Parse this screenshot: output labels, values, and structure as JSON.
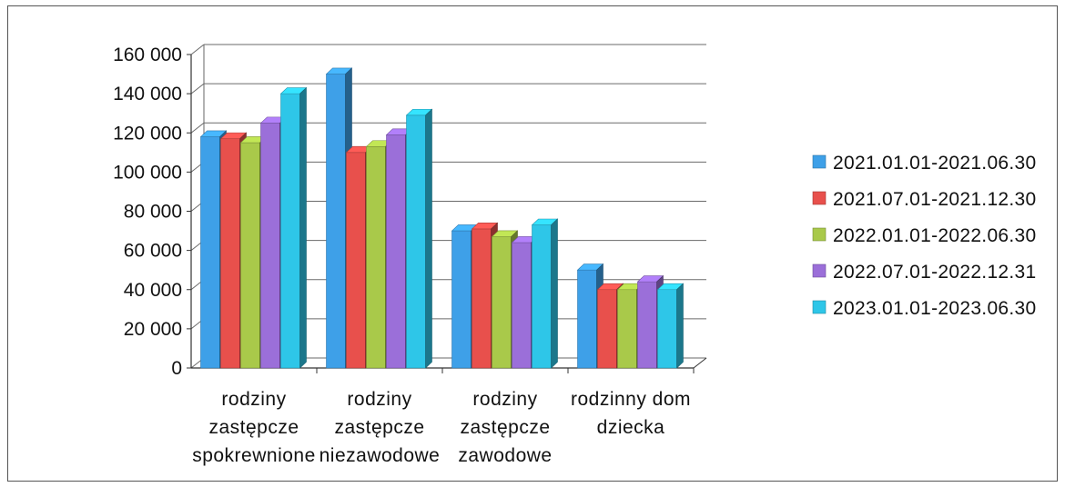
{
  "chart_data": {
    "type": "bar",
    "categories": [
      [
        "rodziny",
        "zastępcze",
        "spokrewnione"
      ],
      [
        "rodziny",
        "zastępcze",
        "niezawodowe"
      ],
      [
        "rodziny",
        "zastępcze",
        "zawodowe"
      ],
      [
        "rodzinny dom",
        "dziecka"
      ]
    ],
    "series": [
      {
        "name": "2021.01.01-2021.06.30",
        "values": [
          118000,
          150000,
          70000,
          50000
        ],
        "color": "#3ea0e8"
      },
      {
        "name": "2021.07.01-2021.12.30",
        "values": [
          117000,
          110000,
          71000,
          40000
        ],
        "color": "#e8504c"
      },
      {
        "name": "2022.01.01-2022.06.30",
        "values": [
          115000,
          113000,
          67000,
          40000
        ],
        "color": "#a9c94a"
      },
      {
        "name": "2022.07.01-2022.12.31",
        "values": [
          125000,
          119000,
          64000,
          44000
        ],
        "color": "#9b6fd9"
      },
      {
        "name": "2023.01.01-2023.06.30",
        "values": [
          140000,
          129000,
          73000,
          40000
        ],
        "color": "#2ec6e8"
      }
    ],
    "y_ticks": [
      "0",
      "20 000",
      "40 000",
      "60 000",
      "80 000",
      "100 000",
      "120 000",
      "140 000",
      "160 000"
    ],
    "ylim": [
      0,
      160000
    ],
    "grid": true,
    "legend_position": "right",
    "three_d": true
  }
}
